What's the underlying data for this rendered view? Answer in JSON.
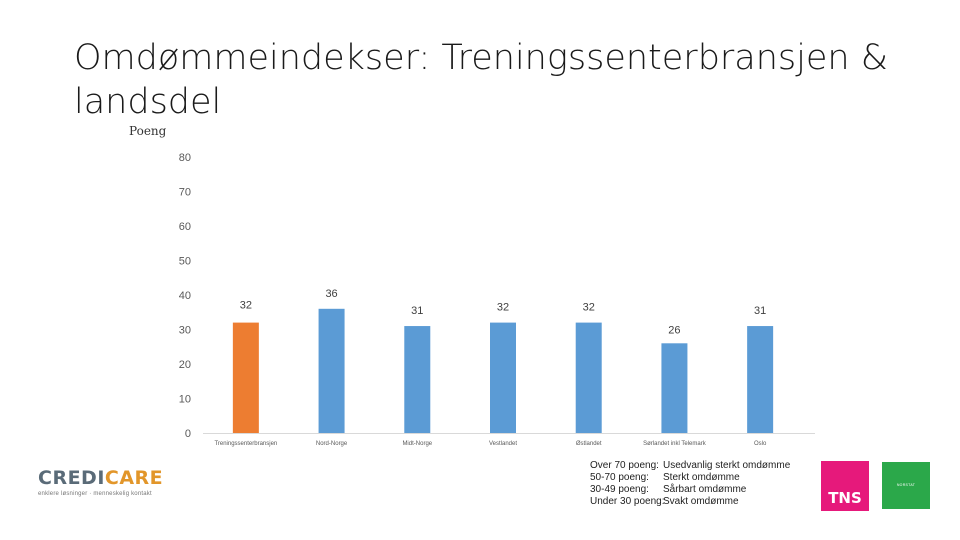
{
  "slide": {
    "title": "Omdømmeindekser: Treningssenterbransjen & landsdel"
  },
  "chart_data": {
    "type": "bar",
    "title": "",
    "ylabel": "Poeng",
    "xlabel": "",
    "ylim": [
      0,
      80
    ],
    "yticks": [
      0,
      10,
      20,
      30,
      40,
      50,
      60,
      70,
      80
    ],
    "grid": false,
    "categories": [
      "Treningssenterbransjen",
      "Nord-Norge",
      "Midt-Norge",
      "Vestlandet",
      "Østlandet",
      "Sørlandet inkl Telemark",
      "Oslo"
    ],
    "values": [
      32,
      36,
      31,
      32,
      32,
      26,
      31
    ],
    "data_labels": [
      "32",
      "36",
      "31",
      "32",
      "32",
      "26",
      "31"
    ],
    "colors": {
      "highlight": "#ed7d31",
      "default": "#5b9bd5",
      "axis": "#d9d9d9",
      "tick_text": "#595959"
    },
    "highlight_index": 0
  },
  "legend": {
    "rows": [
      {
        "key": "Over 70 poeng:",
        "text": "Usedvanlig sterkt omdømme"
      },
      {
        "key": "50-70 poeng:",
        "text": "Sterkt omdømme"
      },
      {
        "key": "30-49 poeng:",
        "text": "Sårbart omdømme"
      },
      {
        "key": "Under 30 poeng:",
        "text": "Svakt omdømme"
      }
    ]
  },
  "logos": {
    "credicare_part1": "CREDI",
    "credicare_part2": "CARE",
    "credicare_tagline": "enklere løsninger · menneskelig kontakt",
    "tns": "TNS",
    "green_logo": "NORSTAT"
  }
}
